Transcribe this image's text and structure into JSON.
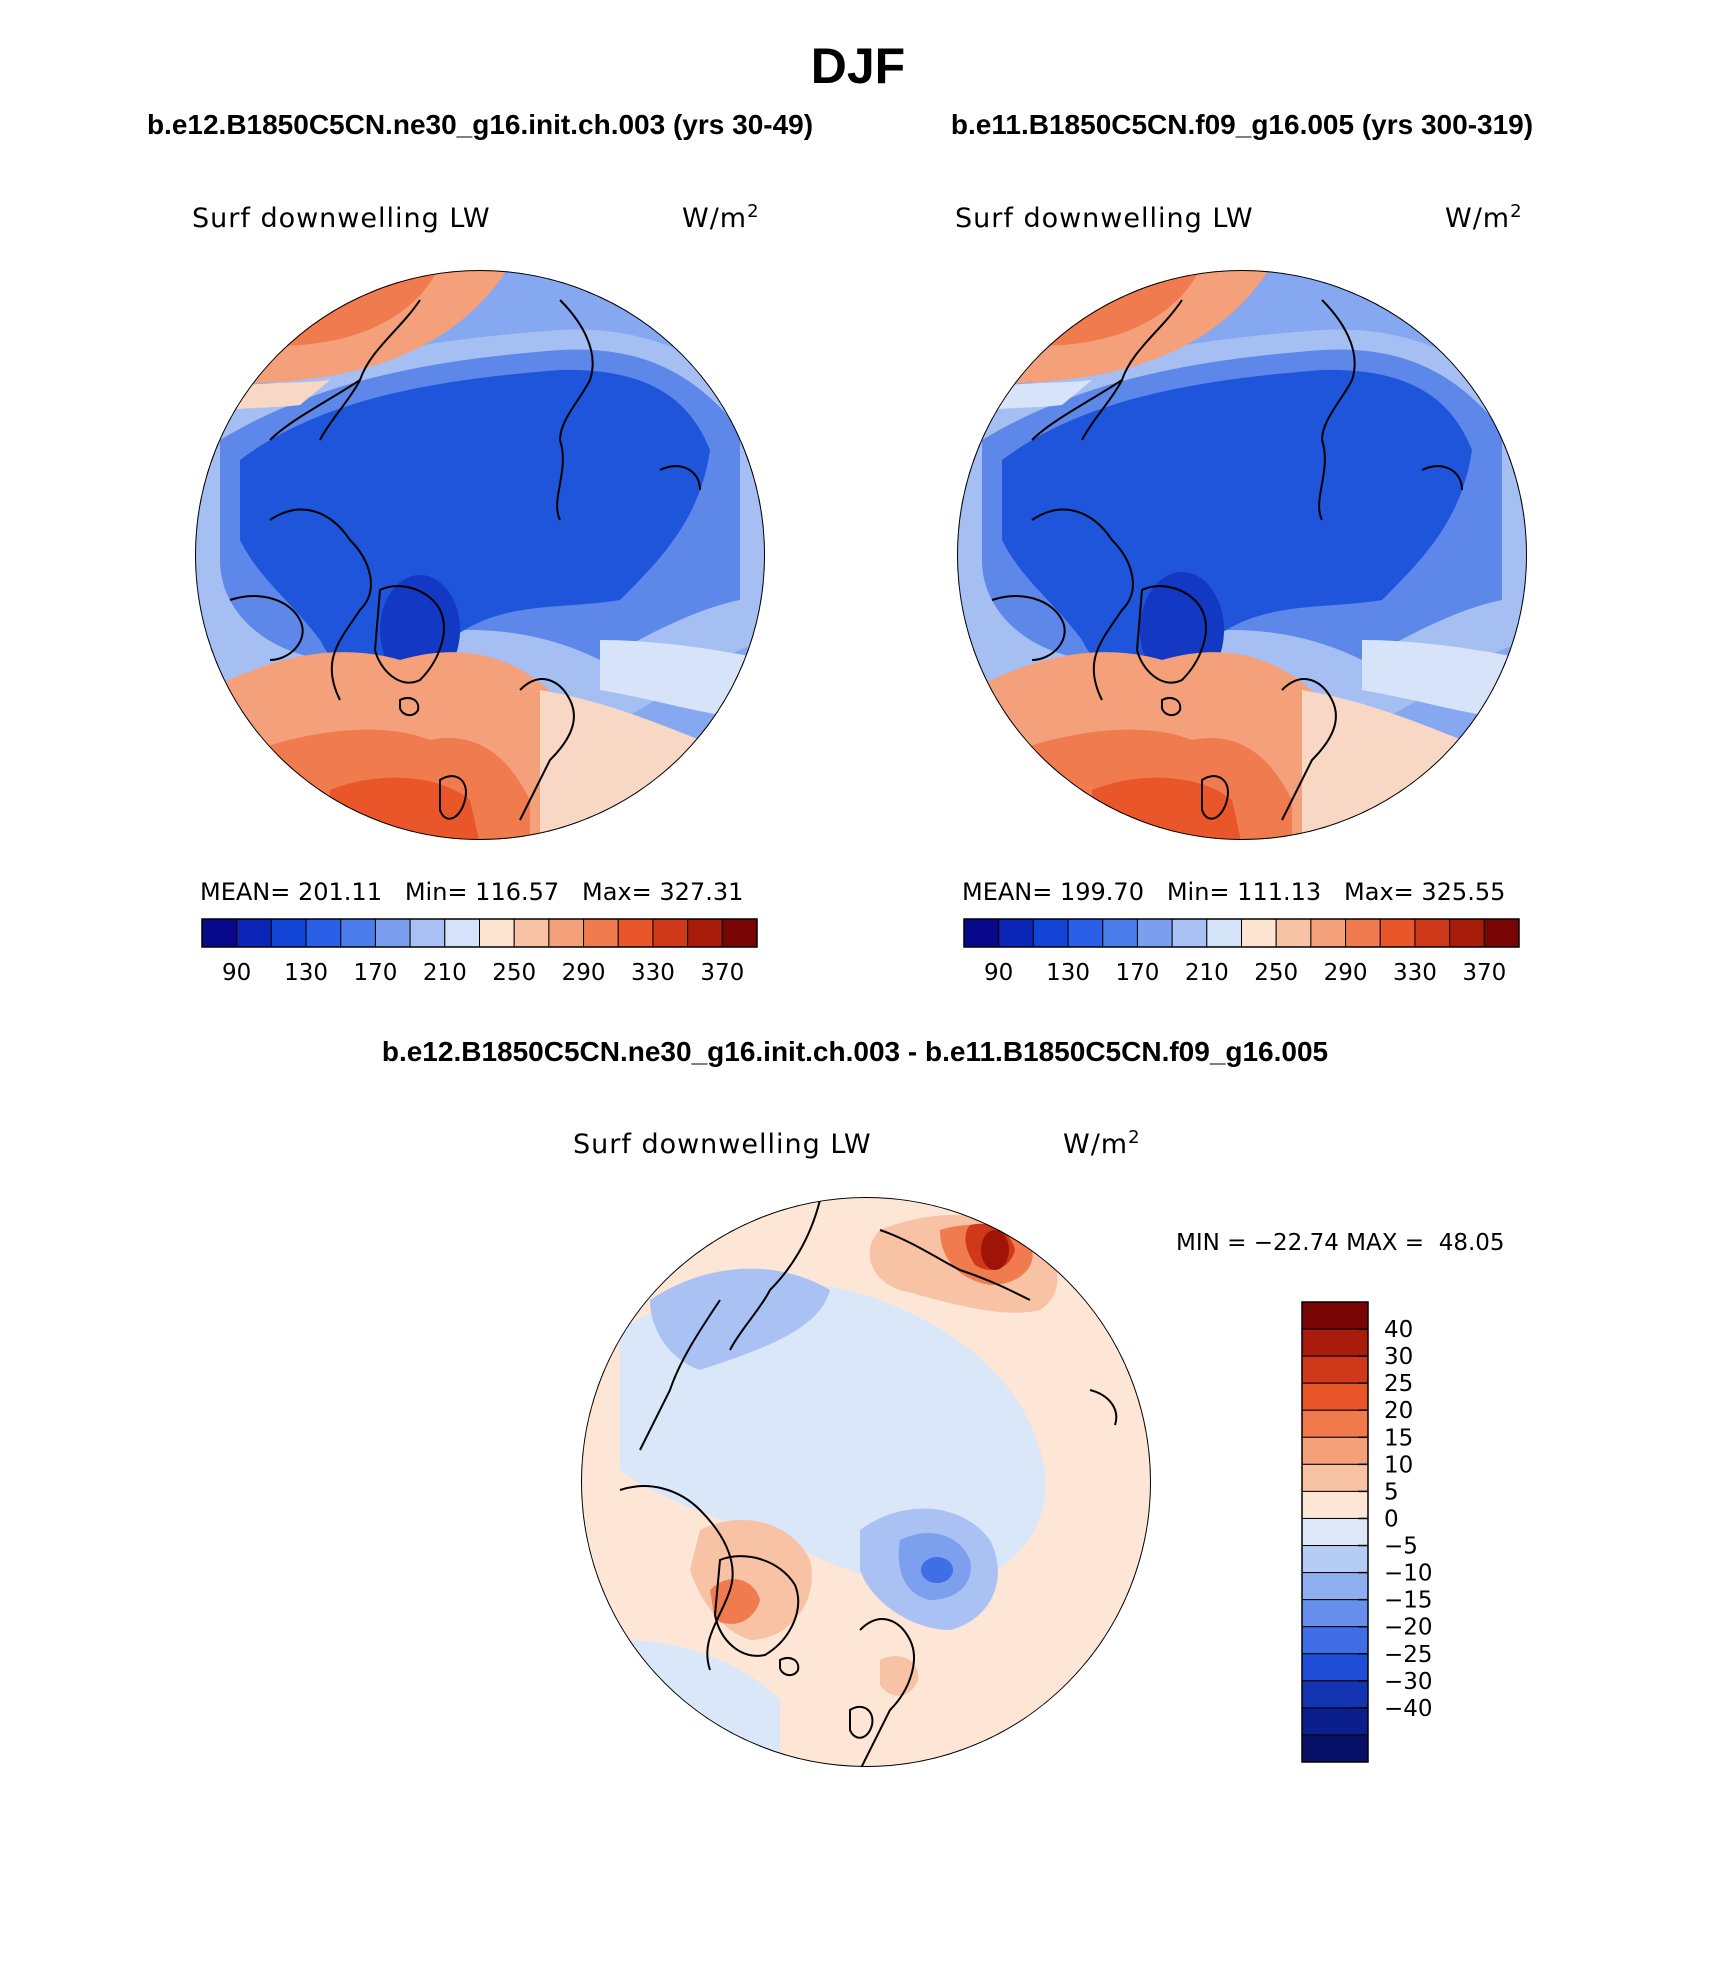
{
  "page_title": "DJF",
  "panels": [
    {
      "case": "b.e12.B1850C5CN.ne30_g16.init.ch.003 (yrs 30-49)",
      "variable": "Surf downwelling LW",
      "units": "W/m",
      "units_exp": "2",
      "stats": "MEAN= 201.11   Min= 116.57   Max= 327.31"
    },
    {
      "case": "b.e11.B1850C5CN.f09_g16.005 (yrs 300-319)",
      "variable": "Surf downwelling LW",
      "units": "W/m",
      "units_exp": "2",
      "stats": "MEAN= 199.70   Min= 111.13   Max= 325.55"
    }
  ],
  "abs_colorbar": {
    "colors": [
      "#08088a",
      "#0a25b8",
      "#1244d6",
      "#2a5fe8",
      "#4a7cec",
      "#7b9eef",
      "#a8c0f3",
      "#d4e3f8",
      "#fde4d0",
      "#f8c2a4",
      "#f4a07a",
      "#ef7b4e",
      "#e8562a",
      "#d0381a",
      "#a81c0c",
      "#780404"
    ],
    "labels": [
      "90",
      "130",
      "170",
      "210",
      "250",
      "290",
      "330",
      "370"
    ]
  },
  "diff": {
    "title": "b.e12.B1850C5CN.ne30_g16.init.ch.003 - b.e11.B1850C5CN.f09_g16.005",
    "variable": "Surf downwelling LW",
    "units": "W/m",
    "units_exp": "2",
    "minmax": "MIN = −22.74 MAX =  48.05",
    "colorbar_colors": [
      "#780404",
      "#a81c0c",
      "#d0381a",
      "#e8562a",
      "#f07a4c",
      "#f4a07a",
      "#f8c2a4",
      "#fde6d6",
      "#dde9f8",
      "#b5cdf4",
      "#8fb0f0",
      "#6690ec",
      "#3f6ee6",
      "#1f4fd6",
      "#1334b0",
      "#0a1e8c",
      "#061066"
    ],
    "colorbar_labels": [
      "40",
      "30",
      "25",
      "20",
      "15",
      "10",
      "5",
      "0",
      "−5",
      "−10",
      "−15",
      "−20",
      "−25",
      "−30",
      "−40"
    ]
  },
  "map_colors": {
    "abs": {
      "land": "#1f55db",
      "ice": "#3f6fe4",
      "deep": "#1238c4",
      "mid": "#5d88ea",
      "light": "#a6bff2",
      "pale": "#d7e3f8",
      "warm1": "#f8d8c4",
      "warm2": "#f4a07a",
      "warm3": "#ef7b4e",
      "warm4": "#e8562a",
      "cool_edge": "#86a8f0"
    },
    "diff": {
      "base": "#fde6d6",
      "pale_blue": "#d9e7f9",
      "blue": "#a9c2f3",
      "mid_blue": "#7da0ee",
      "dark_blue": "#3f6ee6",
      "warm": "#f8c2a4",
      "hot": "#ef7b4e",
      "hotter": "#d0381a",
      "hottest": "#a01408"
    }
  }
}
